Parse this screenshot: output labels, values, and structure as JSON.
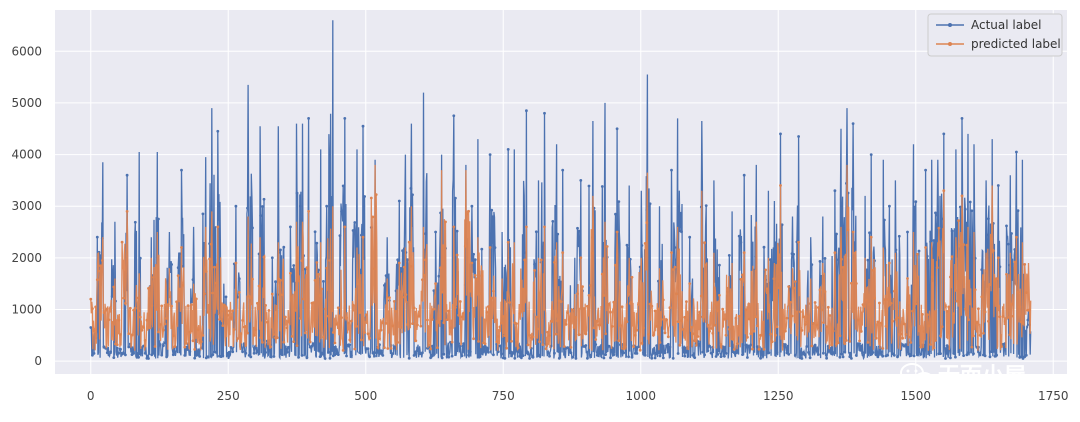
{
  "chart_data": {
    "type": "line",
    "title": "",
    "xlabel": "",
    "ylabel": "",
    "xlim": [
      -65,
      1775
    ],
    "ylim": [
      -250,
      6800
    ],
    "x_ticks": [
      0,
      250,
      500,
      750,
      1000,
      1250,
      1500,
      1750
    ],
    "y_ticks": [
      0,
      1000,
      2000,
      3000,
      4000,
      5000,
      6000
    ],
    "grid": true,
    "legend_position": "top-right",
    "n_points": 1710,
    "series": [
      {
        "name": "Actual label",
        "color": "#4c72b0",
        "marker": "dot",
        "values_sampled": [
          650,
          3850,
          120,
          2700,
          80,
          3600,
          200,
          4050,
          150,
          2400,
          4050,
          300,
          2500,
          100,
          3700,
          200,
          2600,
          90,
          3950,
          4900,
          4450,
          1500,
          100,
          3000,
          200,
          5350,
          150,
          4550,
          300,
          2000,
          4550,
          120,
          2600,
          4600,
          4700,
          200,
          4100,
          3000,
          6600,
          150,
          4700,
          200,
          4100,
          4550,
          100,
          3900,
          200,
          2400,
          150,
          3100,
          4000,
          4600,
          200,
          5200,
          150,
          2500,
          4000,
          300,
          4750,
          200,
          3800,
          3000,
          4300,
          150,
          4000,
          200,
          2500,
          4100,
          300,
          4850,
          100,
          3500,
          4800,
          200,
          4200,
          3700,
          100,
          2000,
          3500,
          200,
          4650,
          200,
          5000,
          150,
          4500,
          200,
          3400,
          150,
          3300,
          5550,
          150,
          3000,
          200,
          3700,
          4700,
          150,
          2400,
          300,
          4650,
          200,
          3500,
          150,
          2900,
          200,
          3600,
          200,
          3800,
          150,
          3300,
          3100,
          4400,
          200,
          2800,
          4350,
          150,
          2400,
          200,
          2800,
          150,
          3300,
          4500,
          4900,
          4600,
          200,
          3200,
          4000,
          200,
          3900,
          3000,
          3500,
          200,
          2500,
          4200,
          200,
          3700,
          3900,
          4400,
          200,
          4100,
          4700,
          4400,
          4200,
          150,
          3500,
          4300,
          3400,
          200,
          3600,
          4050,
          3900,
          1000
        ]
      },
      {
        "name": "predicted label",
        "color": "#dd8452",
        "marker": "dot",
        "values_sampled": [
          1200,
          2400,
          800,
          1600,
          300,
          2900,
          700,
          1700,
          400,
          2000,
          2500,
          600,
          1800,
          300,
          2200,
          700,
          1500,
          400,
          2600,
          2900,
          2600,
          1000,
          500,
          1900,
          600,
          2800,
          500,
          2400,
          800,
          1300,
          2300,
          500,
          1700,
          2700,
          2900,
          700,
          2300,
          1800,
          3000,
          500,
          2600,
          700,
          2200,
          2400,
          400,
          3800,
          600,
          1600,
          500,
          1900,
          2200,
          3000,
          700,
          2600,
          500,
          1500,
          3700,
          800,
          2600,
          700,
          3700,
          1900,
          2400,
          500,
          2200,
          700,
          1600,
          2300,
          800,
          2600,
          400,
          2000,
          2600,
          700,
          2300,
          2100,
          400,
          1300,
          2000,
          600,
          3200,
          700,
          2700,
          500,
          2500,
          700,
          2000,
          500,
          2000,
          3650,
          500,
          1800,
          700,
          2100,
          2600,
          500,
          1500,
          800,
          3300,
          700,
          2100,
          500,
          1900,
          700,
          2100,
          700,
          2700,
          500,
          2000,
          1900,
          3400,
          700,
          1800,
          2300,
          500,
          1600,
          700,
          1900,
          500,
          2100,
          2600,
          3800,
          2500,
          700,
          2000,
          2400,
          700,
          2200,
          1900,
          2100,
          700,
          1600,
          2500,
          700,
          2200,
          2300,
          3300,
          700,
          2400,
          3200,
          2600,
          2500,
          500,
          2100,
          3400,
          2000,
          700,
          2100,
          2400,
          2300,
          1900
        ]
      }
    ]
  },
  "watermark": {
    "text": "无而小屋",
    "icon": "wechat-icon"
  },
  "colors": {
    "plot_bg": "#eaeaf2",
    "grid": "#ffffff"
  }
}
